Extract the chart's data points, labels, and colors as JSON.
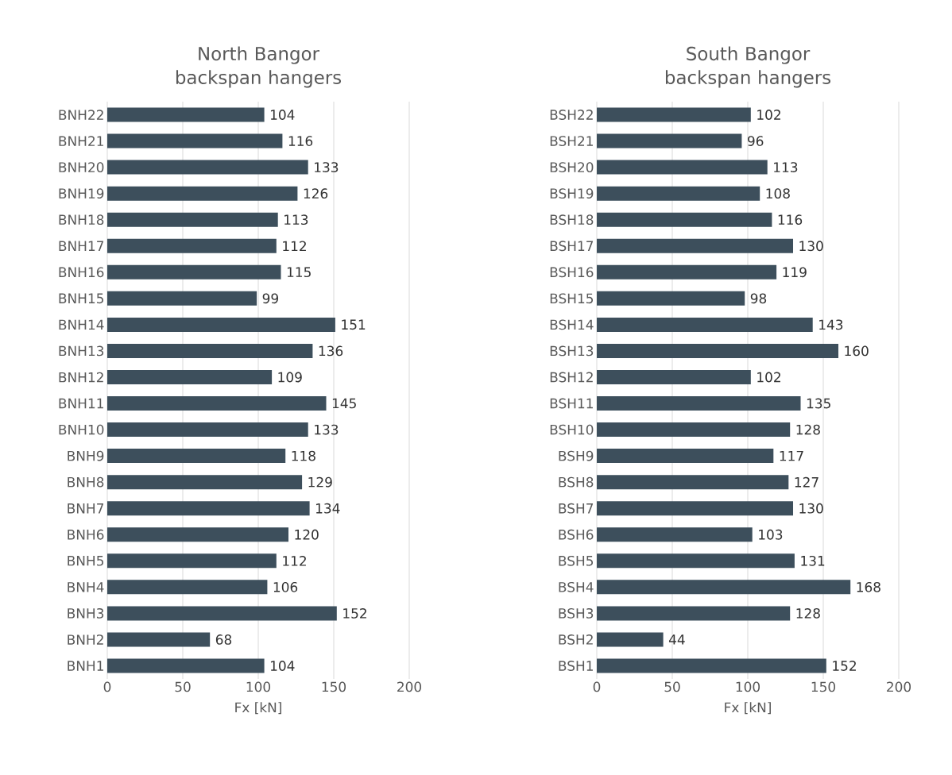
{
  "chart_data": [
    {
      "type": "bar",
      "orientation": "horizontal",
      "title": "North Bangor backspan hangers",
      "xlabel": "Fx [kN]",
      "categories": [
        "BNH22",
        "BNH21",
        "BNH20",
        "BNH19",
        "BNH18",
        "BNH17",
        "BNH16",
        "BNH15",
        "BNH14",
        "BNH13",
        "BNH12",
        "BNH11",
        "BNH10",
        "BNH9",
        "BNH8",
        "BNH7",
        "BNH6",
        "BNH5",
        "BNH4",
        "BNH3",
        "BNH2",
        "BNH1"
      ],
      "values": [
        104,
        116,
        133,
        126,
        113,
        112,
        115,
        99,
        151,
        136,
        109,
        145,
        133,
        118,
        129,
        134,
        120,
        112,
        106,
        152,
        68,
        104
      ],
      "color": "#3d4f5c",
      "xlim": [
        0,
        200
      ],
      "xticks": [
        0,
        50,
        100,
        150,
        200
      ],
      "grid": "x",
      "data_labels": true
    },
    {
      "type": "bar",
      "orientation": "horizontal",
      "title": "South Bangor backspan hangers",
      "xlabel": "Fx [kN]",
      "categories": [
        "BSH22",
        "BSH21",
        "BSH20",
        "BSH19",
        "BSH18",
        "BSH17",
        "BSH16",
        "BSH15",
        "BSH14",
        "BSH13",
        "BSH12",
        "BSH11",
        "BSH10",
        "BSH9",
        "BSH8",
        "BSH7",
        "BSH6",
        "BSH5",
        "BSH4",
        "BSH3",
        "BSH2",
        "BSH1"
      ],
      "values": [
        102,
        96,
        113,
        108,
        116,
        130,
        119,
        98,
        143,
        160,
        102,
        135,
        128,
        117,
        127,
        130,
        103,
        131,
        168,
        128,
        44,
        152
      ],
      "color": "#3d4f5c",
      "xlim": [
        0,
        200
      ],
      "xticks": [
        0,
        50,
        100,
        150,
        200
      ],
      "grid": "x",
      "data_labels": true
    }
  ]
}
